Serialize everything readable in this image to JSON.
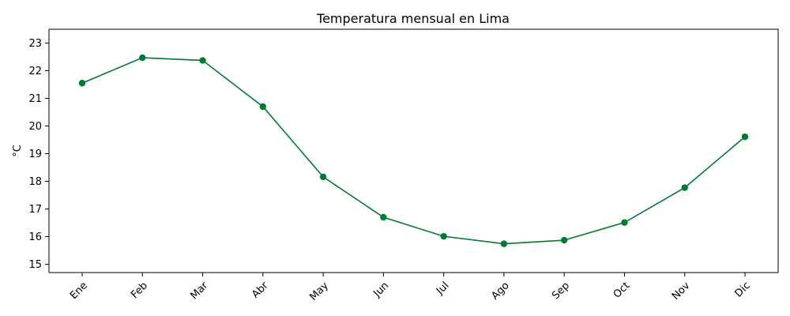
{
  "chart_data": {
    "type": "line",
    "title": "Temperatura mensual en Lima",
    "xlabel": "",
    "ylabel": "°C",
    "categories": [
      "Ene",
      "Feb",
      "Mar",
      "Abr",
      "May",
      "Jun",
      "Jul",
      "Ago",
      "Sep",
      "Oct",
      "Nov",
      "Dic"
    ],
    "series": [
      {
        "values": [
          21.55,
          22.47,
          22.37,
          20.7,
          18.16,
          16.7,
          16.01,
          15.74,
          15.87,
          16.51,
          17.77,
          19.61
        ],
        "color": "#007a33",
        "marker": "circle"
      }
    ],
    "ylim": [
      14.7,
      23.5
    ],
    "yticks": [
      15,
      16,
      17,
      18,
      19,
      20,
      21,
      22,
      23
    ],
    "ytick_labels": [
      "15",
      "16",
      "17",
      "18",
      "19",
      "20",
      "21",
      "22",
      "23"
    ],
    "grid": false,
    "legend": "none"
  }
}
